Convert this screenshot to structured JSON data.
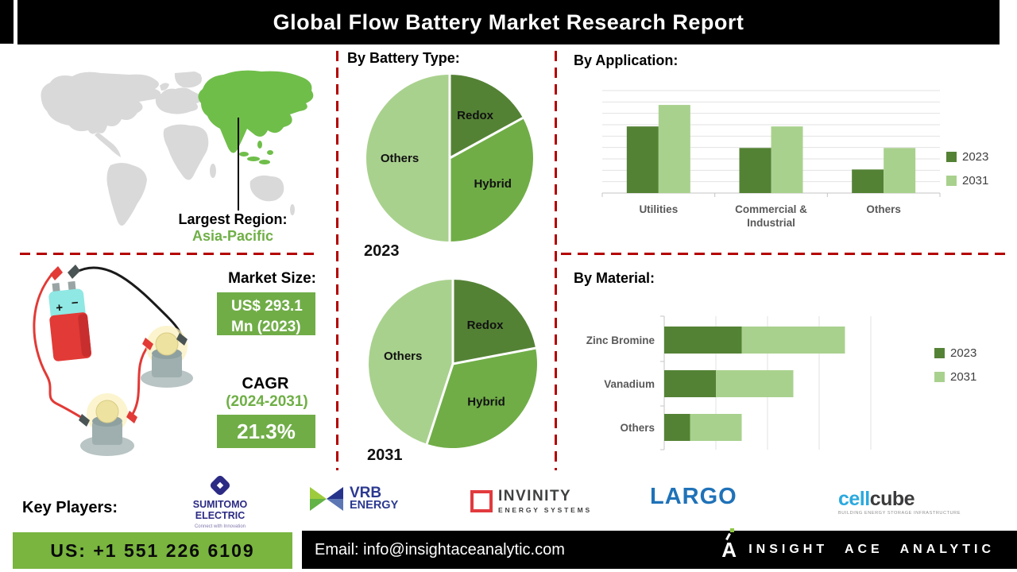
{
  "title": "Global Flow Battery Market Research Report",
  "sections": {
    "battery_type": "By Battery Type:",
    "application": "By Application:",
    "material": "By Material:"
  },
  "region": {
    "label": "Largest Region:",
    "value": "Asia-Pacific"
  },
  "market": {
    "size_label": "Market Size:",
    "size_line1": "US$ 293.1",
    "size_line2": "Mn (2023)",
    "cagr_label": "CAGR",
    "cagr_period": "(2024-2031)",
    "cagr_value": "21.3%"
  },
  "chart_data": [
    {
      "type": "pie",
      "title": "2023",
      "labels": [
        "Redox",
        "Hybrid",
        "Others"
      ],
      "values": [
        17,
        33,
        50
      ],
      "colors": [
        "#548235",
        "#70AD47",
        "#A9D18E"
      ],
      "start_angle": 0,
      "note_layout": "clockwise from top"
    },
    {
      "type": "pie",
      "title": "2031",
      "labels": [
        "Redox",
        "Hybrid",
        "Others"
      ],
      "values": [
        22,
        33,
        45
      ],
      "colors": [
        "#548235",
        "#70AD47",
        "#A9D18E"
      ],
      "start_angle": 0,
      "note_layout": "clockwise from top"
    },
    {
      "type": "bar",
      "title": "By Application:",
      "categories": [
        "Utilities",
        "Commercial &\nIndustrial",
        "Others"
      ],
      "series": [
        {
          "name": "2023",
          "values": [
            65,
            44,
            23
          ],
          "color": "#548235"
        },
        {
          "name": "2031",
          "values": [
            86,
            65,
            44
          ],
          "color": "#A9D18E"
        }
      ],
      "ylim": [
        0,
        100
      ],
      "grid": true,
      "legend_position": "right"
    },
    {
      "type": "stacked-hbar",
      "title": "By Material:",
      "categories": [
        "Zinc Bromine",
        "Vanadium",
        "Others"
      ],
      "series": [
        {
          "name": "2023",
          "values": [
            1.5,
            1.0,
            0.5
          ],
          "color": "#548235"
        },
        {
          "name": "2031",
          "values": [
            2.0,
            1.5,
            1.0
          ],
          "color": "#A9D18E"
        }
      ],
      "xlim": [
        0,
        4.5
      ],
      "grid": true,
      "legend_position": "right"
    }
  ],
  "key_players": {
    "label": "Key Players:",
    "sumitomo": {
      "line1": "SUMITOMO",
      "line2": "ELECTRIC",
      "tagline": "Connect with Innovation"
    },
    "vrb": {
      "line1": "VRB",
      "line2": "ENERGY"
    },
    "invinity": {
      "line1": "INVINITY",
      "line2": "ENERGY SYSTEMS"
    },
    "largo": {
      "text": "LARGO"
    },
    "cellcube": {
      "part1": "cell",
      "part2": "cube",
      "tagline": "BUILDING ENERGY STORAGE INFRASTRUCTURE"
    }
  },
  "footer": {
    "phone": "US: +1 551 226 6109",
    "email": "Email: info@insightaceanalytic.com",
    "brand": "INSIGHT ACE ANALYTIC"
  },
  "colors": {
    "green_dark": "#548235",
    "green_mid": "#70AD47",
    "green_light": "#A9D18E",
    "map_green": "#6FBE4A",
    "dash_red": "#B40000",
    "footer_green": "#79B53F",
    "title_bg": "#000000"
  }
}
